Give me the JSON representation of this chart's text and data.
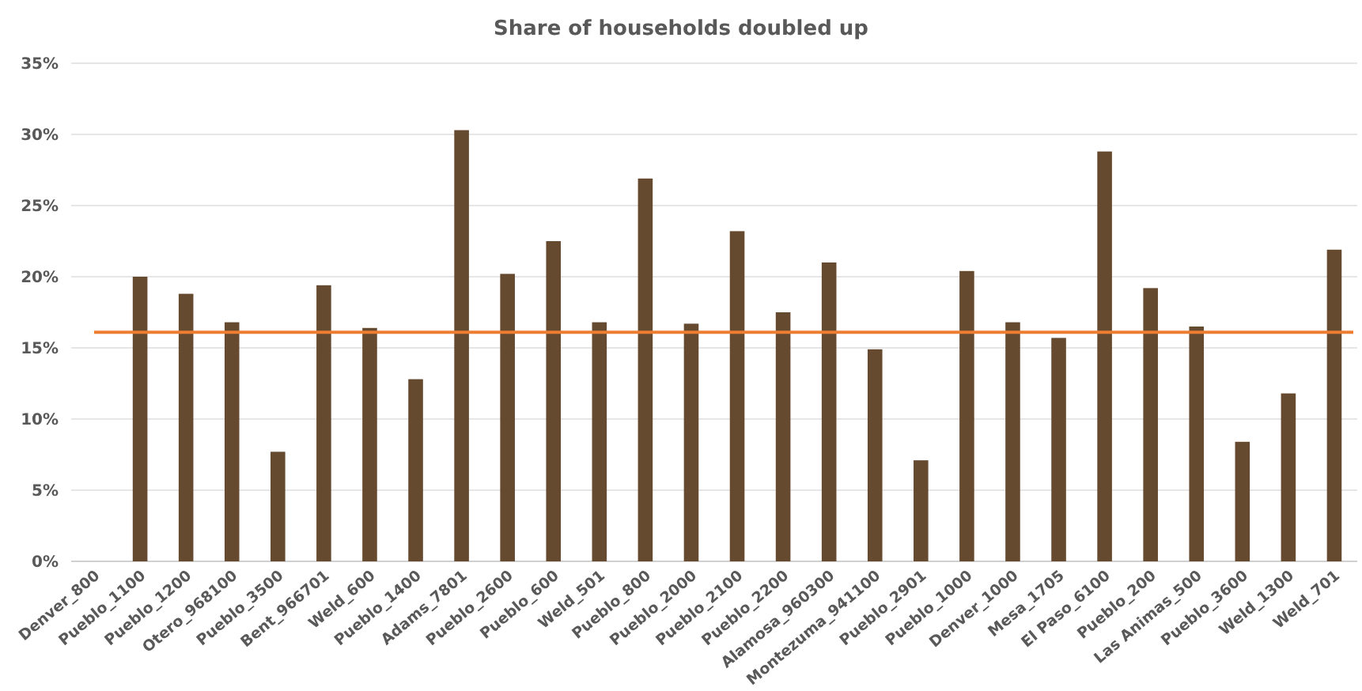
{
  "chart_data": {
    "type": "bar",
    "title": "Share of households doubled up",
    "categories": [
      "Denver_800",
      "Pueblo_1100",
      "Pueblo_1200",
      "Otero_968100",
      "Pueblo_3500",
      "Bent_966701",
      "Weld_600",
      "Pueblo_1400",
      "Adams_7801",
      "Pueblo_2600",
      "Pueblo_600",
      "Weld_501",
      "Pueblo_800",
      "Pueblo_2000",
      "Pueblo_2100",
      "Pueblo_2200",
      "Alamosa_960300",
      "Montezuma_941100",
      "Pueblo_2901",
      "Pueblo_1000",
      "Denver_1000",
      "Mesa_1705",
      "El Paso_6100",
      "Pueblo_200",
      "Las Animas_500",
      "Pueblo_3600",
      "Weld_1300",
      "Weld_701"
    ],
    "values": [
      null,
      20.0,
      18.8,
      16.8,
      7.7,
      19.4,
      16.4,
      12.8,
      30.3,
      20.2,
      22.5,
      16.8,
      26.9,
      16.7,
      23.2,
      17.5,
      21.0,
      14.9,
      7.1,
      20.4,
      16.8,
      15.7,
      28.8,
      19.2,
      16.5,
      8.4,
      11.8,
      21.9
    ],
    "color": "#664a30",
    "ylim": [
      0,
      35
    ],
    "yticks": [
      {
        "value": 0,
        "label": "0%"
      },
      {
        "value": 5,
        "label": "5%"
      },
      {
        "value": 10,
        "label": "10%"
      },
      {
        "value": 15,
        "label": "15%"
      },
      {
        "value": 20,
        "label": "20%"
      },
      {
        "value": 25,
        "label": "25%"
      },
      {
        "value": 30,
        "label": "30%"
      },
      {
        "value": 35,
        "label": "35%"
      }
    ],
    "grid": "y",
    "ref_lines": [
      {
        "axis": "y",
        "value": 16.1,
        "color": "#ed7d31"
      }
    ]
  }
}
